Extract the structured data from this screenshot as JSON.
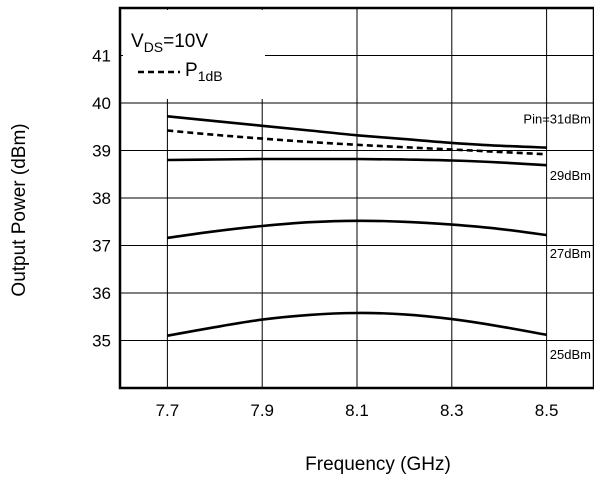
{
  "chart_data": {
    "type": "line",
    "xlabel": "Frequency (GHz)",
    "ylabel": "Output Power (dBm)",
    "xlim": [
      7.6,
      8.6
    ],
    "ylim": [
      34,
      42
    ],
    "x_ticks": [
      7.7,
      7.9,
      8.1,
      8.3,
      8.5
    ],
    "x_tick_labels": [
      "7.7",
      "7.9",
      "8.1",
      "8.3",
      "8.5"
    ],
    "y_ticks": [
      35,
      36,
      37,
      38,
      39,
      40,
      41
    ],
    "y_tick_labels": [
      "35",
      "36",
      "37",
      "38",
      "39",
      "40",
      "41"
    ],
    "grid": true,
    "legend": {
      "placement": "top-left",
      "condition_main": "V",
      "condition_sub": "DS",
      "condition_value": "=10V",
      "p1db_main": "P",
      "p1db_sub": "1dB"
    },
    "series": [
      {
        "name": "Pin=31dBm",
        "style": "solid",
        "x": [
          7.7,
          7.8,
          7.9,
          8.0,
          8.1,
          8.2,
          8.3,
          8.4,
          8.5
        ],
        "y": [
          39.72,
          39.62,
          39.52,
          39.42,
          39.32,
          39.24,
          39.16,
          39.1,
          39.06
        ]
      },
      {
        "name": "29dBm",
        "style": "solid",
        "x": [
          7.7,
          7.8,
          7.9,
          8.0,
          8.1,
          8.2,
          8.3,
          8.4,
          8.5
        ],
        "y": [
          38.8,
          38.81,
          38.82,
          38.82,
          38.82,
          38.81,
          38.79,
          38.75,
          38.69
        ]
      },
      {
        "name": "27dBm",
        "style": "solid",
        "x": [
          7.7,
          7.8,
          7.9,
          8.0,
          8.1,
          8.2,
          8.3,
          8.4,
          8.5
        ],
        "y": [
          37.16,
          37.3,
          37.41,
          37.49,
          37.52,
          37.5,
          37.44,
          37.35,
          37.22
        ]
      },
      {
        "name": "25dBm",
        "style": "solid",
        "x": [
          7.7,
          7.8,
          7.9,
          8.0,
          8.1,
          8.2,
          8.3,
          8.4,
          8.5
        ],
        "y": [
          35.1,
          35.28,
          35.44,
          35.54,
          35.58,
          35.55,
          35.45,
          35.3,
          35.12
        ]
      },
      {
        "name": "P1dB",
        "style": "dashed",
        "x": [
          7.7,
          7.8,
          7.9,
          8.0,
          8.1,
          8.2,
          8.3,
          8.4,
          8.5
        ],
        "y": [
          39.42,
          39.33,
          39.25,
          39.18,
          39.12,
          39.07,
          39.02,
          38.97,
          38.92
        ]
      }
    ]
  }
}
